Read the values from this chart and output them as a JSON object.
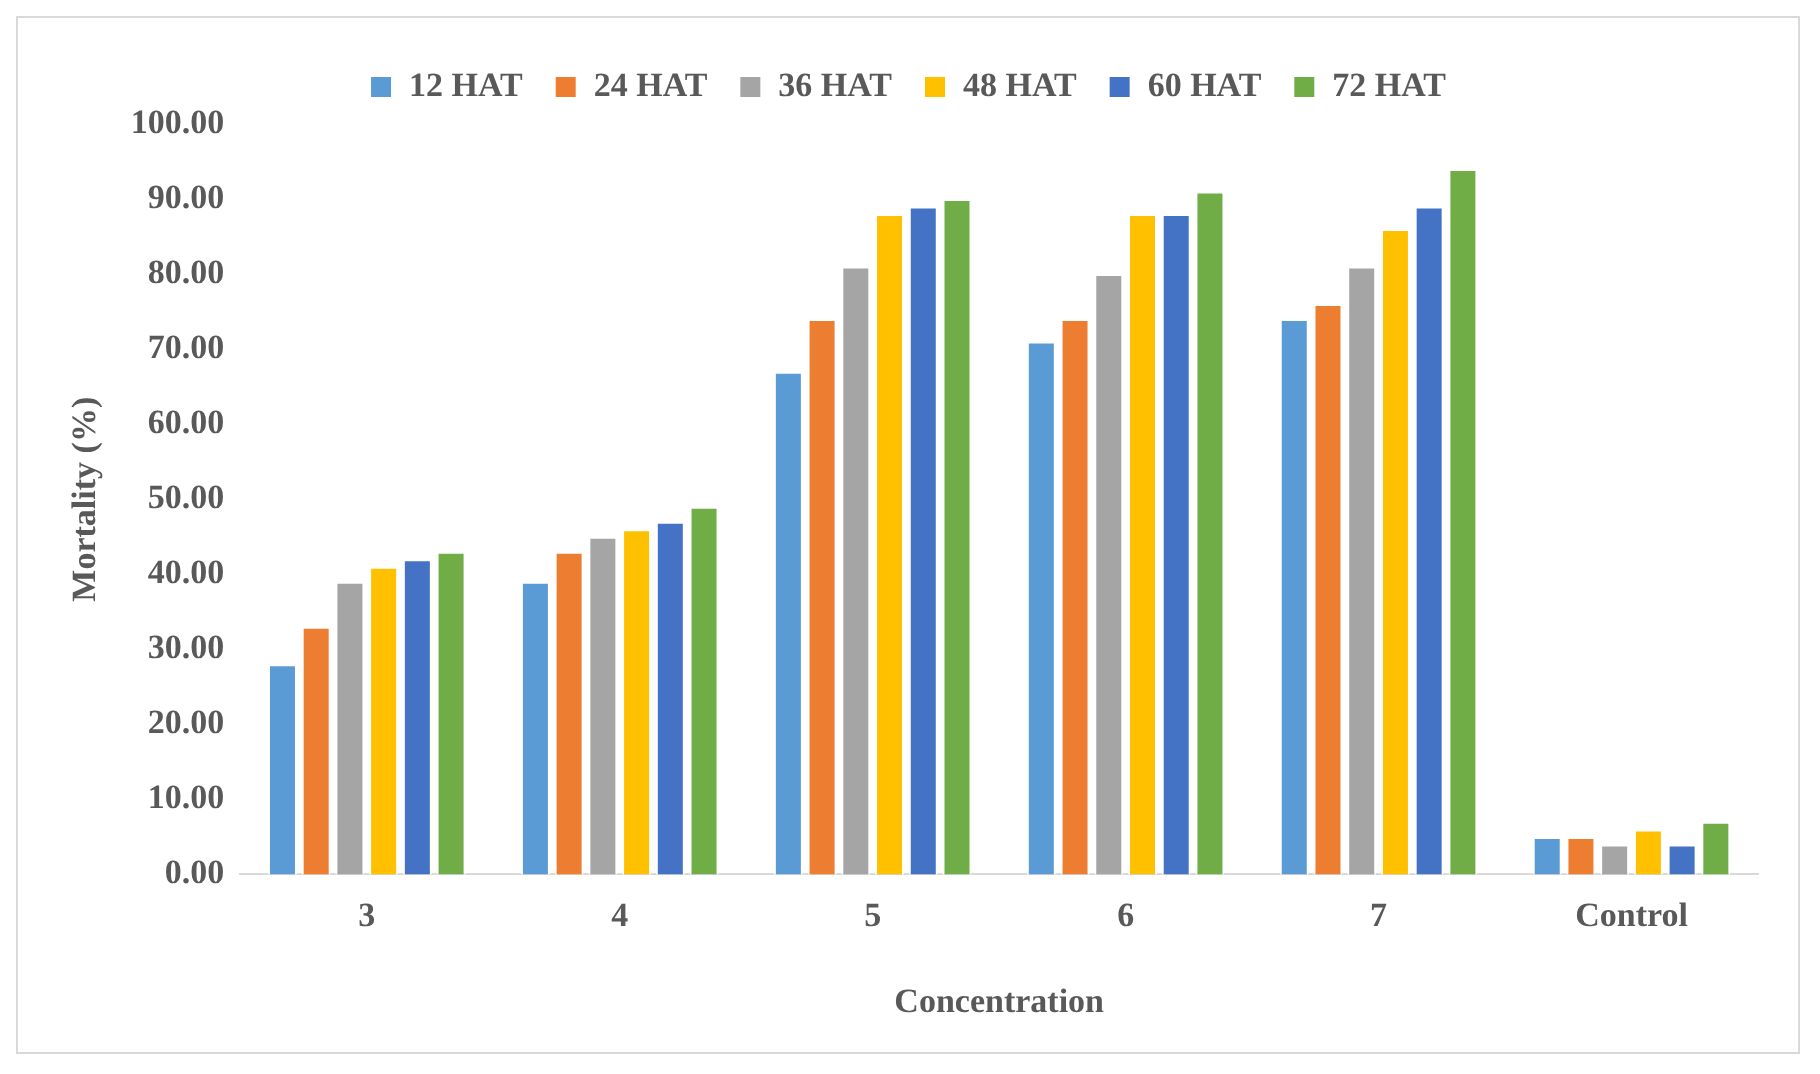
{
  "chart_data": {
    "type": "bar",
    "xlabel": "Concentration",
    "ylabel": "Mortality (%)",
    "categories": [
      "3",
      "4",
      "5",
      "6",
      "7",
      "Control"
    ],
    "series": [
      {
        "name": "12 HAT",
        "color": "#5b9bd5",
        "values": [
          28,
          39,
          67,
          71,
          74,
          5
        ]
      },
      {
        "name": "24 HAT",
        "color": "#ed7d31",
        "values": [
          33,
          43,
          74,
          74,
          76,
          5
        ]
      },
      {
        "name": "36 HAT",
        "color": "#a5a5a5",
        "values": [
          39,
          45,
          81,
          80,
          81,
          4
        ]
      },
      {
        "name": "48 HAT",
        "color": "#ffc000",
        "values": [
          41,
          46,
          88,
          88,
          86,
          6
        ]
      },
      {
        "name": "60 HAT",
        "color": "#4472c4",
        "values": [
          42,
          47,
          89,
          88,
          89,
          4
        ]
      },
      {
        "name": "72 HAT",
        "color": "#70ad47",
        "values": [
          43,
          49,
          90,
          91,
          94,
          7
        ]
      }
    ],
    "ylim": [
      0,
      100
    ],
    "yticks": [
      {
        "value": 0,
        "label": "0.00"
      },
      {
        "value": 10,
        "label": "10.00"
      },
      {
        "value": 20,
        "label": "20.00"
      },
      {
        "value": 30,
        "label": "30.00"
      },
      {
        "value": 40,
        "label": "40.00"
      },
      {
        "value": 50,
        "label": "50.00"
      },
      {
        "value": 60,
        "label": "60.00"
      },
      {
        "value": 70,
        "label": "70.00"
      },
      {
        "value": 80,
        "label": "80.00"
      },
      {
        "value": 90,
        "label": "90.00"
      },
      {
        "value": 100,
        "label": "100.00"
      }
    ],
    "grid": false,
    "legend": "top"
  }
}
